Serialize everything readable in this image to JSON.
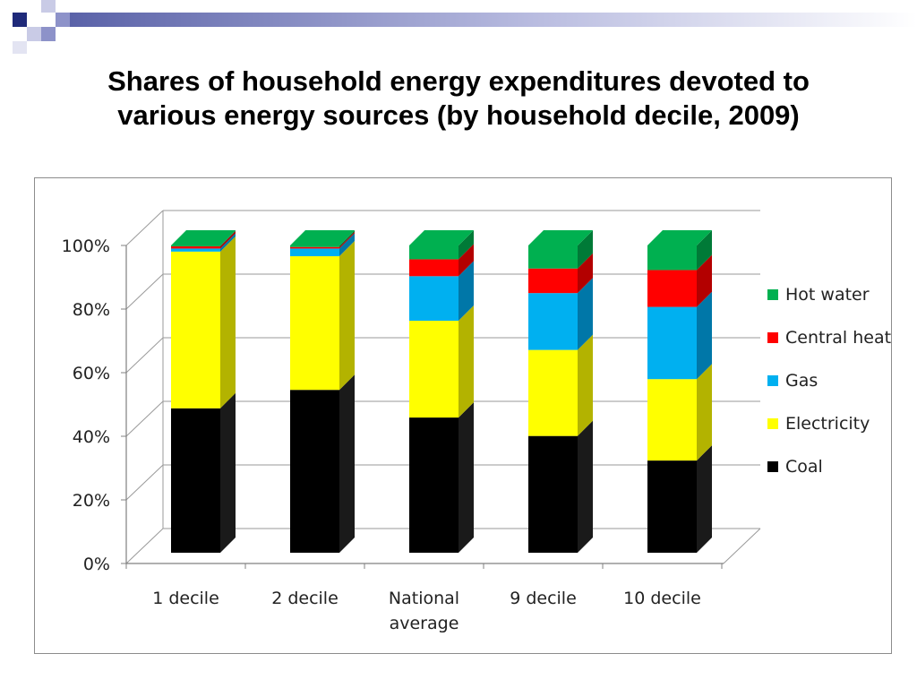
{
  "slide": {
    "title_line1": "Shares of household energy expenditures devoted to",
    "title_line2": "various energy sources (by household decile, 2009)"
  },
  "chart_data": {
    "type": "bar",
    "stacked": true,
    "three_d": true,
    "categories": [
      "1 decile",
      "2 decile",
      "National average",
      "9 decile",
      "10 decile"
    ],
    "category_lines": [
      [
        "1 decile"
      ],
      [
        "2 decile"
      ],
      [
        "National",
        "average"
      ],
      [
        "9 decile"
      ],
      [
        "10 decile"
      ]
    ],
    "series": [
      {
        "name": "Coal",
        "color": "#000000",
        "side": "#1a1a1a",
        "values": [
          47,
          53,
          44,
          38,
          30
        ]
      },
      {
        "name": "Electricity",
        "color": "#ffff00",
        "side": "#b3b300",
        "values": [
          51,
          43.5,
          31.5,
          28,
          26.5
        ]
      },
      {
        "name": "Gas",
        "color": "#00b0f0",
        "side": "#0077a8",
        "values": [
          1,
          2.5,
          14.5,
          18.5,
          23.5
        ]
      },
      {
        "name": "Central heat",
        "color": "#ff0000",
        "side": "#b30000",
        "values": [
          0.7,
          0.5,
          5.5,
          8,
          12
        ]
      },
      {
        "name": "Hot water",
        "color": "#00b050",
        "side": "#007a37",
        "values": [
          0.3,
          0.5,
          4.5,
          7.5,
          8
        ]
      }
    ],
    "legend_order": [
      "Hot water",
      "Central heat",
      "Gas",
      "Electricity",
      "Coal"
    ],
    "y_ticks": [
      "0%",
      "20%",
      "40%",
      "60%",
      "80%",
      "100%"
    ],
    "ylim": [
      0,
      100
    ],
    "grid": true,
    "legend_position": "right"
  }
}
